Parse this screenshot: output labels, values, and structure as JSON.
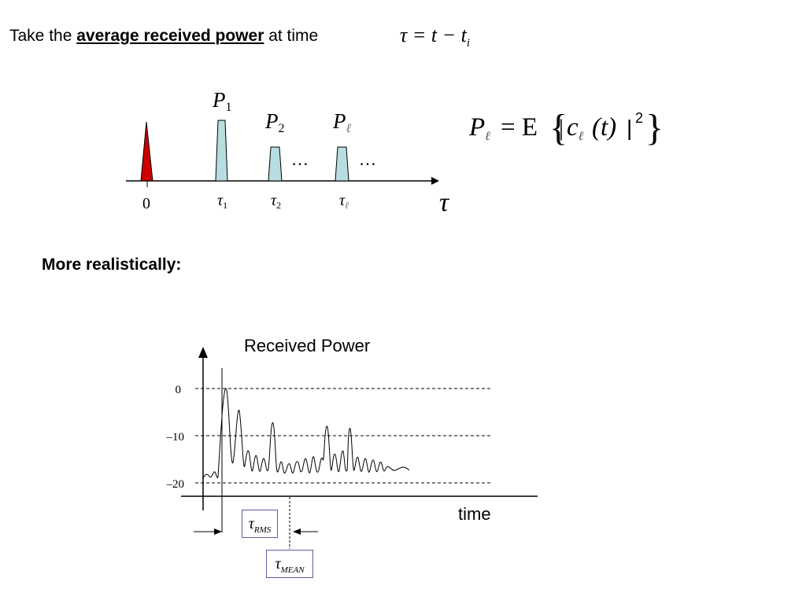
{
  "heading": {
    "prefix": "Take the ",
    "emphasis": "average received power",
    "suffix": " at time",
    "equation_lhs": "τ = t − t",
    "equation_sub": "i"
  },
  "top_figure": {
    "origin_label": "0",
    "axis_label": "τ",
    "dots": "…",
    "pulses": [
      {
        "power_label": "P",
        "power_sub": "1",
        "delay_label": "τ",
        "delay_sub": "1"
      },
      {
        "power_label": "P",
        "power_sub": "2",
        "delay_label": "τ",
        "delay_sub": "2"
      },
      {
        "power_label": "P",
        "power_sub": "ℓ",
        "delay_label": "τ",
        "delay_sub": "ℓ"
      }
    ],
    "formula": {
      "lhs": "P",
      "lhs_sub": "ℓ",
      "eq": "= E",
      "open": "{",
      "bar_open": "|",
      "c": "c",
      "c_sub": "ℓ",
      "arg": "(t)",
      "bar_close": "|",
      "exp": "2",
      "close": "}"
    },
    "colors": {
      "direct_path": "#cc0000",
      "multipath": "#b7dde0"
    }
  },
  "subheading": "More realistically:",
  "bottom_figure": {
    "title": "Received Power",
    "x_label": "time",
    "y_ticks": [
      "0",
      "–10",
      "–20"
    ],
    "rms_label": "τ",
    "rms_sub": "RMS",
    "mean_label": "τ",
    "mean_sub": "MEAN"
  }
}
